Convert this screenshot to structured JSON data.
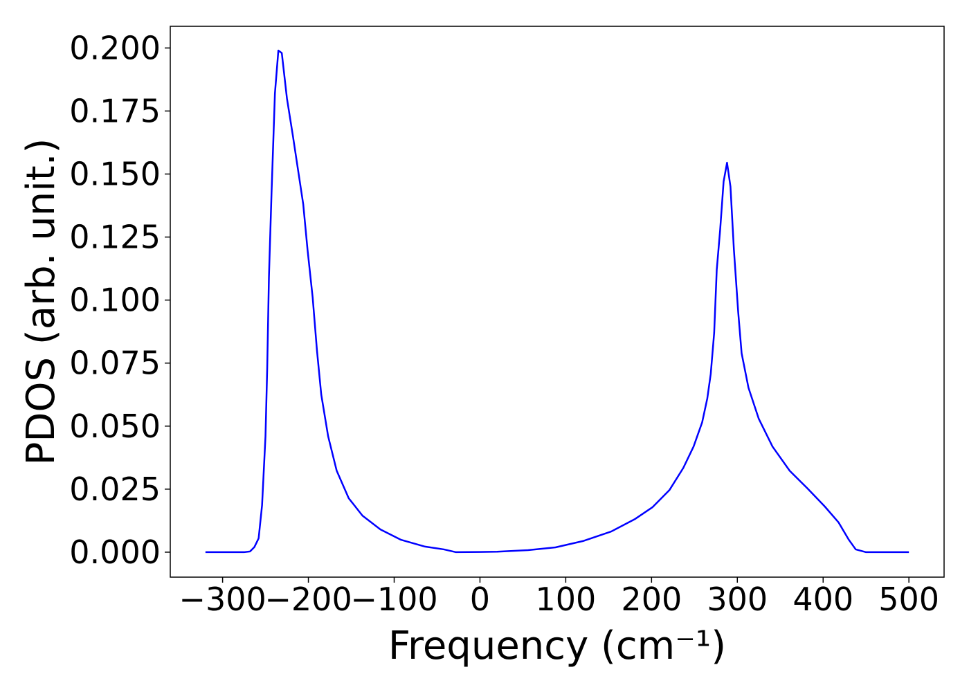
{
  "chart_data": {
    "type": "line",
    "xlabel": "Frequency (cm⁻¹)",
    "ylabel": "PDOS (arb. unit.)",
    "x": [
      -320,
      -275,
      -268,
      -263,
      -258,
      -254,
      -250,
      -248,
      -246,
      -243,
      -239,
      -235,
      -231,
      -225,
      -218,
      -212,
      -206,
      -201,
      -195,
      -190,
      -185,
      -177,
      -167,
      -153,
      -137,
      -116,
      -92,
      -64,
      -42,
      -28,
      0,
      20,
      56,
      88,
      120,
      153,
      181,
      201,
      221,
      237,
      249,
      259,
      265,
      269,
      273,
      276,
      280,
      284,
      288,
      292,
      296,
      301,
      305,
      313,
      325,
      341,
      361,
      382,
      402,
      418,
      430,
      438,
      450,
      500
    ],
    "series": [
      {
        "color": "#0000ff",
        "values": [
          0,
          0,
          0.0003,
          0.002,
          0.0055,
          0.0186,
          0.046,
          0.073,
          0.109,
          0.142,
          0.182,
          0.199,
          0.198,
          0.18,
          0.165,
          0.1515,
          0.138,
          0.12,
          0.101,
          0.08,
          0.0625,
          0.046,
          0.0323,
          0.0214,
          0.0145,
          0.009,
          0.0049,
          0.0022,
          0.0011,
          0,
          0.0001,
          0.0002,
          0.0008,
          0.0019,
          0.0044,
          0.0082,
          0.0132,
          0.0178,
          0.0247,
          0.0334,
          0.0419,
          0.0515,
          0.061,
          0.0707,
          0.087,
          0.112,
          0.128,
          0.147,
          0.1545,
          0.145,
          0.12,
          0.0953,
          0.0789,
          0.0652,
          0.0529,
          0.0419,
          0.0323,
          0.0252,
          0.0181,
          0.0118,
          0.0049,
          0.0011,
          0,
          0
        ]
      }
    ],
    "xlim": [
      -361,
      541
    ],
    "ylim": [
      -0.0099,
      0.2086
    ],
    "xticks": [
      {
        "value": -300,
        "label": "−300"
      },
      {
        "value": -200,
        "label": "−200"
      },
      {
        "value": -100,
        "label": "−100"
      },
      0,
      100,
      200,
      300,
      400,
      500
    ],
    "yticks": [
      {
        "value": 0,
        "label": "0.000"
      },
      {
        "value": 0.025,
        "label": "0.025"
      },
      {
        "value": 0.05,
        "label": "0.050"
      },
      {
        "value": 0.075,
        "label": "0.075"
      },
      {
        "value": 0.1,
        "label": "0.100"
      },
      {
        "value": 0.125,
        "label": "0.125"
      },
      {
        "value": 0.15,
        "label": "0.150"
      },
      {
        "value": 0.175,
        "label": "0.175"
      },
      {
        "value": 0.2,
        "label": "0.200"
      }
    ]
  }
}
